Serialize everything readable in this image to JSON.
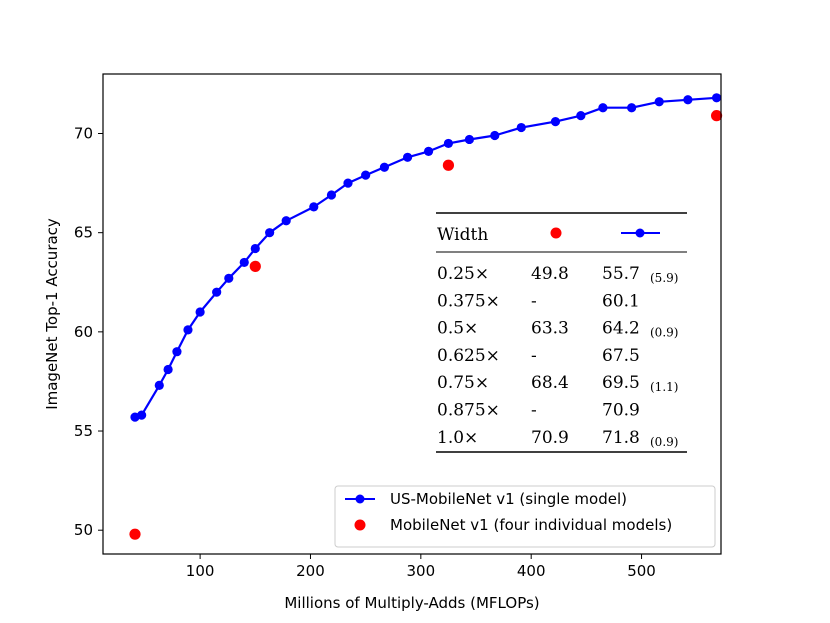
{
  "chart_data": {
    "type": "line",
    "title": "",
    "xlabel": "Millions of Multiply-Adds (MFLOPs)",
    "ylabel": "ImageNet Top-1 Accuracy",
    "xlim": [
      12,
      572
    ],
    "ylim": [
      48.8,
      73.0
    ],
    "xticks": [
      100,
      200,
      300,
      400,
      500
    ],
    "yticks": [
      50,
      55,
      60,
      65,
      70
    ],
    "grid": false,
    "legend_position": "lower-right",
    "colors": {
      "line_series": "#0000ff",
      "point_series": "#ff0000",
      "axis": "#000000"
    },
    "series": [
      {
        "name": "US-MobileNet v1 (single model)",
        "kind": "line-with-markers",
        "x": [
          41,
          47,
          63,
          71,
          79,
          89,
          100,
          115,
          126,
          140,
          150,
          163,
          178,
          203,
          219,
          234,
          250,
          267,
          288,
          307,
          325,
          344,
          367,
          391,
          422,
          445,
          465,
          491,
          516,
          542,
          568
        ],
        "y": [
          55.7,
          55.8,
          57.3,
          58.1,
          59.0,
          60.1,
          61.0,
          62.0,
          62.7,
          63.5,
          64.2,
          65.0,
          65.6,
          66.3,
          66.9,
          67.5,
          67.9,
          68.3,
          68.8,
          69.1,
          69.5,
          69.7,
          69.9,
          70.3,
          70.6,
          70.9,
          71.3,
          71.3,
          71.6,
          71.7,
          71.8
        ]
      },
      {
        "name": "MobileNet v1 (four individual models)",
        "kind": "markers",
        "x": [
          41,
          150,
          325,
          568
        ],
        "y": [
          49.8,
          63.3,
          68.4,
          70.9
        ]
      }
    ],
    "inset_table": {
      "header": {
        "width": "Width"
      },
      "rows": [
        {
          "width": "0.25×",
          "mobilenet": "49.8",
          "us": "55.7",
          "note": "(5.9)"
        },
        {
          "width": "0.375×",
          "mobilenet": "-",
          "us": "60.1",
          "note": ""
        },
        {
          "width": "0.5×",
          "mobilenet": "63.3",
          "us": "64.2",
          "note": "(0.9)"
        },
        {
          "width": "0.625×",
          "mobilenet": "-",
          "us": "67.5",
          "note": ""
        },
        {
          "width": "0.75×",
          "mobilenet": "68.4",
          "us": "69.5",
          "note": "(1.1)"
        },
        {
          "width": "0.875×",
          "mobilenet": "-",
          "us": "70.9",
          "note": ""
        },
        {
          "width": "1.0×",
          "mobilenet": "70.9",
          "us": "71.8",
          "note": "(0.9)"
        }
      ]
    }
  }
}
